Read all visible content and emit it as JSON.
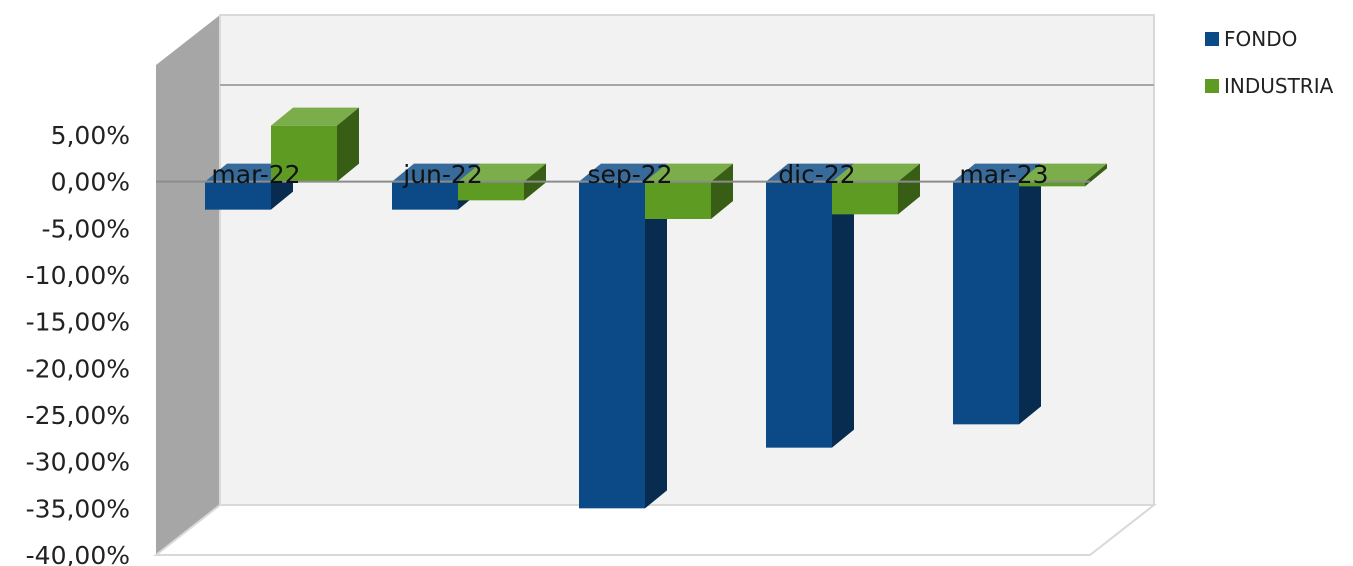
{
  "chart_data": {
    "type": "bar",
    "title": "",
    "xlabel": "",
    "ylabel": "",
    "categories": [
      "mar-22",
      "jun-22",
      "sep-22",
      "dic-22",
      "mar-23"
    ],
    "series": [
      {
        "name": "FONDO",
        "color": "#0b4a86",
        "values": [
          -3.0,
          -3.0,
          -35.0,
          -28.5,
          -26.0
        ]
      },
      {
        "name": "INDUSTRIA",
        "color": "#5e9b22",
        "values": [
          6.0,
          -2.0,
          -4.0,
          -3.5,
          -0.5
        ]
      }
    ],
    "ylim": [
      -40,
      5
    ],
    "yticks": [
      "5,00%",
      "0,00%",
      "-5,00%",
      "-10,00%",
      "-15,00%",
      "-20,00%",
      "-25,00%",
      "-30,00%",
      "-35,00%",
      "-40,00%"
    ],
    "grid": false,
    "legend": "top-right"
  }
}
